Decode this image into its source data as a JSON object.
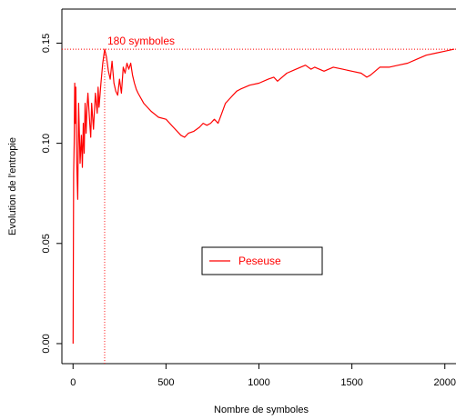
{
  "chart_data": {
    "type": "line",
    "title": "",
    "xlabel": "Nombre de symboles",
    "ylabel": "Evolution de l'entropie",
    "xlim": [
      -60,
      2060
    ],
    "ylim": [
      -0.01,
      0.167
    ],
    "x_ticks": [
      0,
      500,
      1000,
      1500,
      2000
    ],
    "x_tick_labels": [
      "0",
      "500",
      "1000",
      "1500",
      "2000"
    ],
    "y_ticks": [
      0.0,
      0.05,
      0.1,
      0.15
    ],
    "y_tick_labels": [
      "0.00",
      "0.05",
      "0.10",
      "0.15"
    ],
    "grid": false,
    "legend": {
      "position": "center-right",
      "entries": [
        "Peseuse"
      ]
    },
    "annotation": {
      "text": "180 symboles",
      "x": 170,
      "y": 0.147
    },
    "colors": {
      "series": "#ff0000",
      "annotation": "#ff0000",
      "axis": "#000000"
    },
    "series": [
      {
        "name": "Peseuse",
        "x": [
          0,
          3,
          6,
          9,
          12,
          15,
          20,
          25,
          30,
          38,
          45,
          50,
          55,
          60,
          65,
          70,
          75,
          80,
          90,
          95,
          100,
          110,
          120,
          130,
          135,
          140,
          150,
          160,
          170,
          180,
          190,
          200,
          210,
          220,
          230,
          240,
          250,
          260,
          270,
          280,
          290,
          300,
          310,
          320,
          330,
          340,
          350,
          380,
          420,
          460,
          500,
          540,
          580,
          600,
          620,
          650,
          680,
          700,
          720,
          740,
          760,
          780,
          800,
          820,
          850,
          880,
          900,
          950,
          1000,
          1050,
          1080,
          1100,
          1150,
          1200,
          1250,
          1280,
          1300,
          1350,
          1400,
          1450,
          1500,
          1550,
          1580,
          1600,
          1650,
          1700,
          1750,
          1800,
          1850,
          1900,
          1950,
          2000,
          2050
        ],
        "values": [
          0.0,
          0.085,
          0.1,
          0.13,
          0.11,
          0.128,
          0.09,
          0.072,
          0.12,
          0.09,
          0.104,
          0.088,
          0.11,
          0.095,
          0.12,
          0.105,
          0.118,
          0.125,
          0.11,
          0.103,
          0.12,
          0.107,
          0.125,
          0.115,
          0.128,
          0.118,
          0.13,
          0.14,
          0.147,
          0.143,
          0.136,
          0.132,
          0.141,
          0.13,
          0.126,
          0.124,
          0.132,
          0.125,
          0.138,
          0.135,
          0.14,
          0.137,
          0.14,
          0.134,
          0.13,
          0.127,
          0.125,
          0.12,
          0.116,
          0.113,
          0.112,
          0.108,
          0.104,
          0.103,
          0.105,
          0.106,
          0.108,
          0.11,
          0.109,
          0.11,
          0.112,
          0.11,
          0.115,
          0.12,
          0.123,
          0.126,
          0.127,
          0.129,
          0.13,
          0.132,
          0.133,
          0.131,
          0.135,
          0.137,
          0.139,
          0.137,
          0.138,
          0.136,
          0.138,
          0.137,
          0.136,
          0.135,
          0.133,
          0.134,
          0.138,
          0.138,
          0.139,
          0.14,
          0.142,
          0.144,
          0.145,
          0.146,
          0.147
        ]
      }
    ]
  }
}
